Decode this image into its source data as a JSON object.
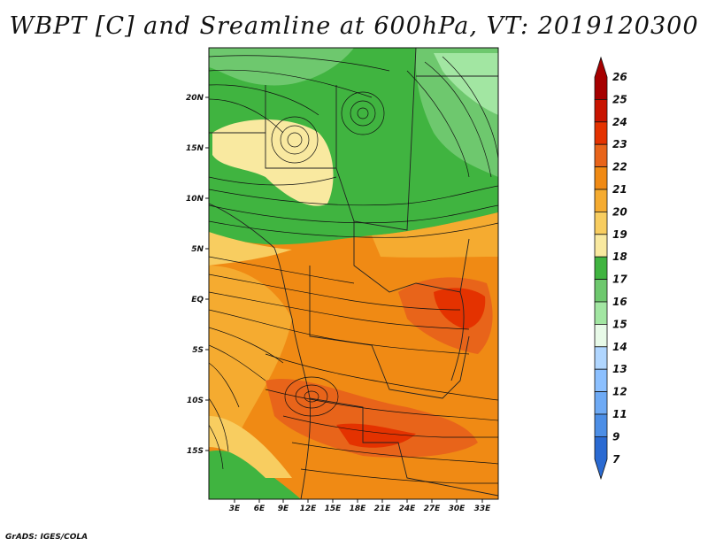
{
  "map": {
    "title": "WBPT [C] and Sreamline at 600hPa, VT: 2019120300",
    "variable": "Wet-bulb potential temperature",
    "units": "C",
    "level": "600hPa",
    "valid_time": "2019120300",
    "lat_labels": [
      "20N",
      "15N",
      "10N",
      "5N",
      "EQ",
      "5S",
      "10S",
      "15S"
    ],
    "lon_labels": [
      "3E",
      "6E",
      "9E",
      "12E",
      "15E",
      "18E",
      "21E",
      "24E",
      "27E",
      "30E",
      "33E"
    ]
  },
  "colorbar": {
    "levels": [
      "26",
      "25",
      "24",
      "23",
      "22",
      "21",
      "20",
      "19",
      "18",
      "17",
      "16",
      "15",
      "14",
      "13",
      "12",
      "11",
      "9",
      "7"
    ],
    "colors": [
      "#a60000",
      "#c81400",
      "#e43200",
      "#e8641a",
      "#f08a14",
      "#f5ab30",
      "#f8cd60",
      "#f9e9a0",
      "#40b440",
      "#6ec86e",
      "#a2e6a2",
      "#e8fae8",
      "#b0d6ff",
      "#8cc0ff",
      "#6eaaf5",
      "#4c8ee6",
      "#2a6ad2"
    ]
  },
  "footer": "GrADS: IGES/COLA"
}
